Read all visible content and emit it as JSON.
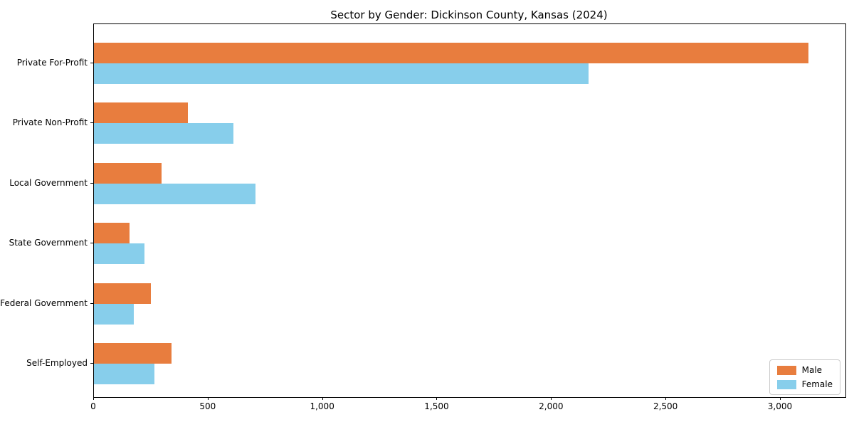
{
  "chart_data": {
    "type": "bar",
    "orientation": "horizontal",
    "title": "Sector by Gender: Dickinson County, Kansas (2024)",
    "categories": [
      "Private For-Profit",
      "Private Non-Profit",
      "Local Government",
      "State Government",
      "Federal Government",
      "Self-Employed"
    ],
    "series": [
      {
        "name": "Male",
        "color": "#e87d3e",
        "values": [
          3120,
          410,
          295,
          155,
          250,
          340
        ]
      },
      {
        "name": "Female",
        "color": "#87ceeb",
        "values": [
          2160,
          610,
          705,
          220,
          175,
          265
        ]
      }
    ],
    "xlabel": "",
    "ylabel": "",
    "xlim": [
      0,
      3283
    ],
    "x_ticks": [
      0,
      500,
      1000,
      1500,
      2000,
      2500,
      3000
    ],
    "x_tick_labels": [
      "0",
      "500",
      "1,000",
      "1,500",
      "2,000",
      "2,500",
      "3,000"
    ],
    "grid": false,
    "legend": {
      "position": "lower right",
      "entries": [
        "Male",
        "Female"
      ]
    },
    "colors": {
      "male": "#e87d3e",
      "female": "#87ceeb",
      "axis": "#000000",
      "legend_border": "#cccccc"
    }
  }
}
